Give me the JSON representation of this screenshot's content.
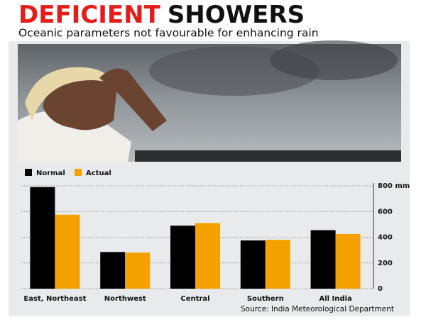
{
  "chart_data": {
    "type": "bar",
    "title": [
      "DEFICIENT",
      "SHOWERS"
    ],
    "subtitle": "Oceanic parameters not favourable for enhancing rain",
    "categories": [
      "East, Northeast",
      "Northwest",
      "Central",
      "Southern",
      "All India"
    ],
    "series": [
      {
        "name": "Normal",
        "color": "#000000",
        "values": [
          790,
          285,
          490,
          375,
          455
        ]
      },
      {
        "name": "Actual",
        "color": "#f5a100",
        "values": [
          575,
          280,
          510,
          380,
          425
        ]
      }
    ],
    "ylim": [
      0,
      800
    ],
    "yticks": [
      0,
      200,
      400,
      600,
      {
        "value": 800,
        "label": "800 mm"
      }
    ],
    "grid": true,
    "source": "Source: India Meteorological Department"
  }
}
